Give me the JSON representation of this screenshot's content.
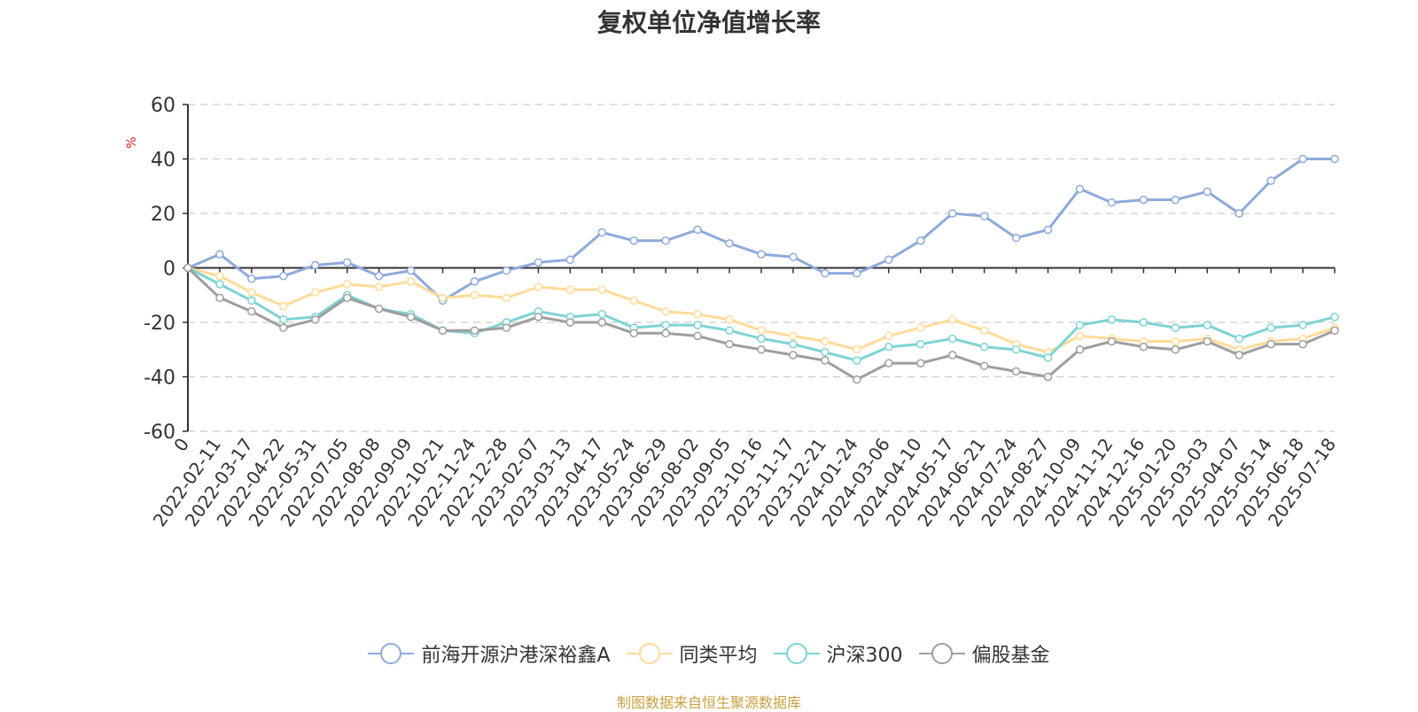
{
  "chart_data": {
    "type": "line",
    "title": "复权单位净值增长率",
    "ylabel": "%",
    "ylim": [
      -60,
      60
    ],
    "yticks": [
      60,
      40,
      20,
      0,
      -20,
      -40,
      -60
    ],
    "grid": true,
    "legend_position": "bottom",
    "x_tick_labels": [
      "0",
      "2022-02-11",
      "2022-03-17",
      "2022-04-22",
      "2022-05-31",
      "2022-07-05",
      "2022-08-08",
      "2022-09-09",
      "2022-10-21",
      "2022-11-24",
      "2022-12-28",
      "2023-02-07",
      "2023-03-13",
      "2023-04-17",
      "2023-05-24",
      "2023-06-29",
      "2023-08-02",
      "2023-09-05",
      "2023-10-16",
      "2023-11-17",
      "2023-12-21",
      "2024-01-24",
      "2024-03-06",
      "2024-04-10",
      "2024-05-17",
      "2024-06-21",
      "2024-07-24",
      "2024-08-27",
      "2024-10-09",
      "2024-11-12",
      "2024-12-16",
      "2025-01-20",
      "2025-03-03",
      "2025-04-07",
      "2025-05-14",
      "2025-06-18",
      "2025-07-18"
    ],
    "series": [
      {
        "name": "前海开源沪港深裕鑫A",
        "color": "#8eaadb",
        "values": [
          0,
          5,
          -4,
          -3,
          1,
          2,
          -3,
          -1,
          -12,
          -5,
          -1,
          2,
          3,
          13,
          10,
          10,
          14,
          9,
          5,
          4,
          -2,
          -2,
          3,
          10,
          20,
          19,
          11,
          14,
          29,
          24,
          25,
          25,
          28,
          20,
          32,
          40,
          40
        ]
      },
      {
        "name": "同类平均",
        "color": "#ffdb98",
        "values": [
          0,
          -3,
          -9,
          -14,
          -9,
          -6,
          -7,
          -5,
          -11,
          -10,
          -11,
          -7,
          -8,
          -8,
          -12,
          -16,
          -17,
          -19,
          -23,
          -25,
          -27,
          -30,
          -25,
          -22,
          -19,
          -23,
          -28,
          -31,
          -25,
          -26,
          -27,
          -27,
          -26,
          -30,
          -27,
          -26,
          -22
        ]
      },
      {
        "name": "沪深300",
        "color": "#7dd3d3",
        "values": [
          0,
          -6,
          -12,
          -19,
          -18,
          -10,
          -15,
          -17,
          -23,
          -24,
          -20,
          -16,
          -18,
          -17,
          -22,
          -21,
          -21,
          -23,
          -26,
          -28,
          -31,
          -34,
          -29,
          -28,
          -26,
          -29,
          -30,
          -33,
          -21,
          -19,
          -20,
          -22,
          -21,
          -26,
          -22,
          -21,
          -18
        ]
      },
      {
        "name": "偏股基金",
        "color": "#9e9e9e",
        "values": [
          0,
          -11,
          -16,
          -22,
          -19,
          -11,
          -15,
          -18,
          -23,
          -23,
          -22,
          -18,
          -20,
          -20,
          -24,
          -24,
          -25,
          -28,
          -30,
          -32,
          -34,
          -41,
          -35,
          -35,
          -32,
          -36,
          -38,
          -40,
          -30,
          -27,
          -29,
          -30,
          -27,
          -32,
          -28,
          -28,
          -23
        ]
      }
    ]
  },
  "legend": {
    "items": [
      {
        "label": "前海开源沪港深裕鑫A",
        "color": "#8eaadb"
      },
      {
        "label": "同类平均",
        "color": "#ffdb98"
      },
      {
        "label": "沪深300",
        "color": "#7dd3d3"
      },
      {
        "label": "偏股基金",
        "color": "#9e9e9e"
      }
    ]
  },
  "footer": {
    "source": "制图数据来自恒生聚源数据库"
  }
}
